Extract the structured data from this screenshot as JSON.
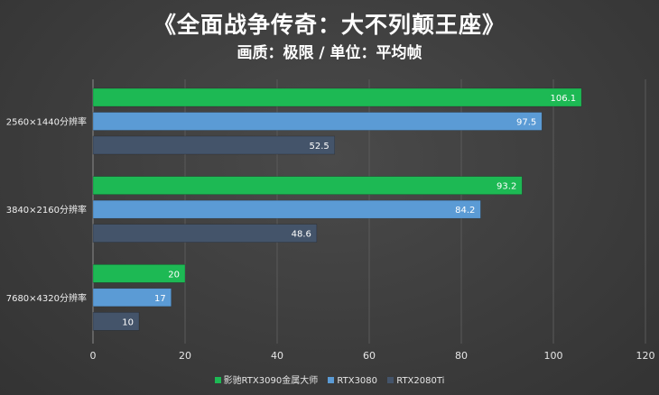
{
  "chart_data": {
    "type": "bar",
    "orientation": "horizontal",
    "title": "《全面战争传奇：大不列颠王座》",
    "subtitle": "画质：极限 / 单位：平均帧",
    "categories": [
      "2560×1440分辨率",
      "3840×2160分辨率",
      "7680×4320分辨率"
    ],
    "series": [
      {
        "name": "影驰RTX3090金属大师",
        "color": "#1db954",
        "values": [
          106.1,
          93.2,
          20
        ]
      },
      {
        "name": "RTX3080",
        "color": "#5b9bd5",
        "values": [
          97.5,
          84.2,
          17
        ]
      },
      {
        "name": "RTX2080Ti",
        "color": "#44546a",
        "values": [
          52.5,
          48.6,
          10
        ]
      }
    ],
    "data_labels": [
      [
        "106.1",
        "93.2",
        "20"
      ],
      [
        "97.5",
        "84.2",
        "17"
      ],
      [
        "52.5",
        "48.6",
        "10"
      ]
    ],
    "xlim": [
      0,
      120
    ],
    "xticks": [
      0,
      20,
      40,
      60,
      80,
      100,
      120
    ],
    "grid": true,
    "legend_position": "bottom"
  }
}
